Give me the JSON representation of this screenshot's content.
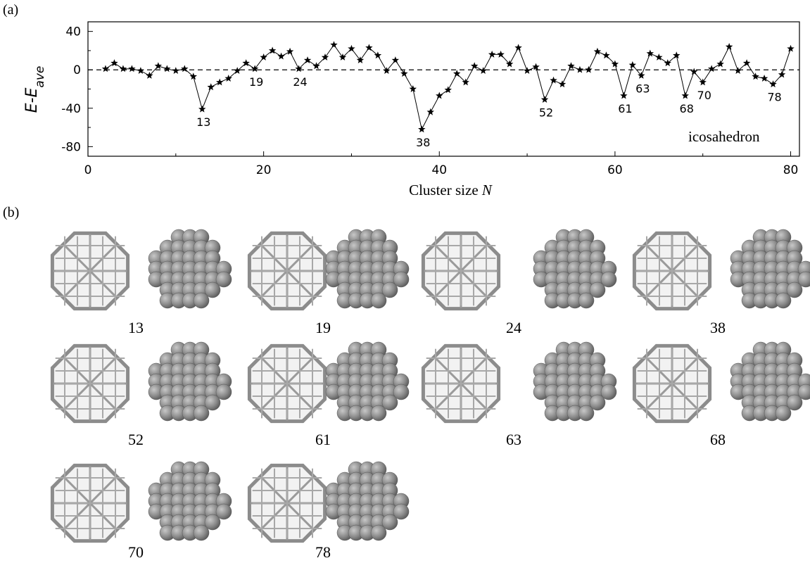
{
  "chart_data": {
    "type": "line",
    "panel_label": "(a)",
    "ylabel": {
      "main": "E-E",
      "sub": "ave"
    },
    "xlabel": {
      "text": "Cluster size",
      "var": "N"
    },
    "note": "icosahedron",
    "x": [
      2,
      3,
      4,
      5,
      6,
      7,
      8,
      9,
      10,
      11,
      12,
      13,
      14,
      15,
      16,
      17,
      18,
      19,
      20,
      21,
      22,
      23,
      24,
      25,
      26,
      27,
      28,
      29,
      30,
      31,
      32,
      33,
      34,
      35,
      36,
      37,
      38,
      39,
      40,
      41,
      42,
      43,
      44,
      45,
      46,
      47,
      48,
      49,
      50,
      51,
      52,
      53,
      54,
      55,
      56,
      57,
      58,
      59,
      60,
      61,
      62,
      63,
      64,
      65,
      66,
      67,
      68,
      69,
      70,
      71,
      72,
      73,
      74,
      75,
      76,
      77,
      78,
      79,
      80
    ],
    "series": [
      {
        "color": "#000000",
        "values": [
          1,
          7,
          1,
          1,
          -1,
          -6,
          4,
          1,
          -1,
          1,
          -7,
          -41,
          -18,
          -13,
          -9,
          -1,
          7,
          1,
          13,
          20,
          14,
          19,
          1,
          10,
          4,
          13,
          26,
          13,
          22,
          10,
          23,
          15,
          -1,
          10,
          -4,
          -20,
          -62,
          -44,
          -27,
          -21,
          -4,
          -13,
          4,
          -1,
          16,
          16,
          6,
          23,
          -1,
          3,
          -31,
          -11,
          -15,
          4,
          0,
          0,
          19,
          15,
          6,
          -27,
          5,
          -6,
          17,
          13,
          7,
          15,
          -27,
          -2,
          -13,
          1,
          6,
          24,
          -1,
          7,
          -7,
          -9,
          -15,
          -5,
          22
        ]
      }
    ],
    "annotations": [
      {
        "x": 13,
        "text": "13"
      },
      {
        "x": 19,
        "text": "19"
      },
      {
        "x": 24,
        "text": "24"
      },
      {
        "x": 38,
        "text": "38"
      },
      {
        "x": 52,
        "text": "52"
      },
      {
        "x": 61,
        "text": "61"
      },
      {
        "x": 63,
        "text": "63"
      },
      {
        "x": 68,
        "text": "68"
      },
      {
        "x": 70,
        "text": "70"
      },
      {
        "x": 78,
        "text": "78"
      }
    ],
    "reference_line": 0,
    "xlim": [
      0,
      81
    ],
    "xticks": [
      0,
      20,
      40,
      60,
      80
    ],
    "xminorticks": [
      10,
      30,
      50,
      70
    ],
    "ylim": [
      -90,
      50
    ],
    "yticks": [
      40,
      0,
      -40,
      -80
    ],
    "yminorticks": [
      20,
      -20,
      -60
    ]
  },
  "panel_b": {
    "label": "(b)",
    "clusters": [
      "13",
      "19",
      "24",
      "38",
      "52",
      "61",
      "63",
      "68",
      "70",
      "78"
    ]
  }
}
